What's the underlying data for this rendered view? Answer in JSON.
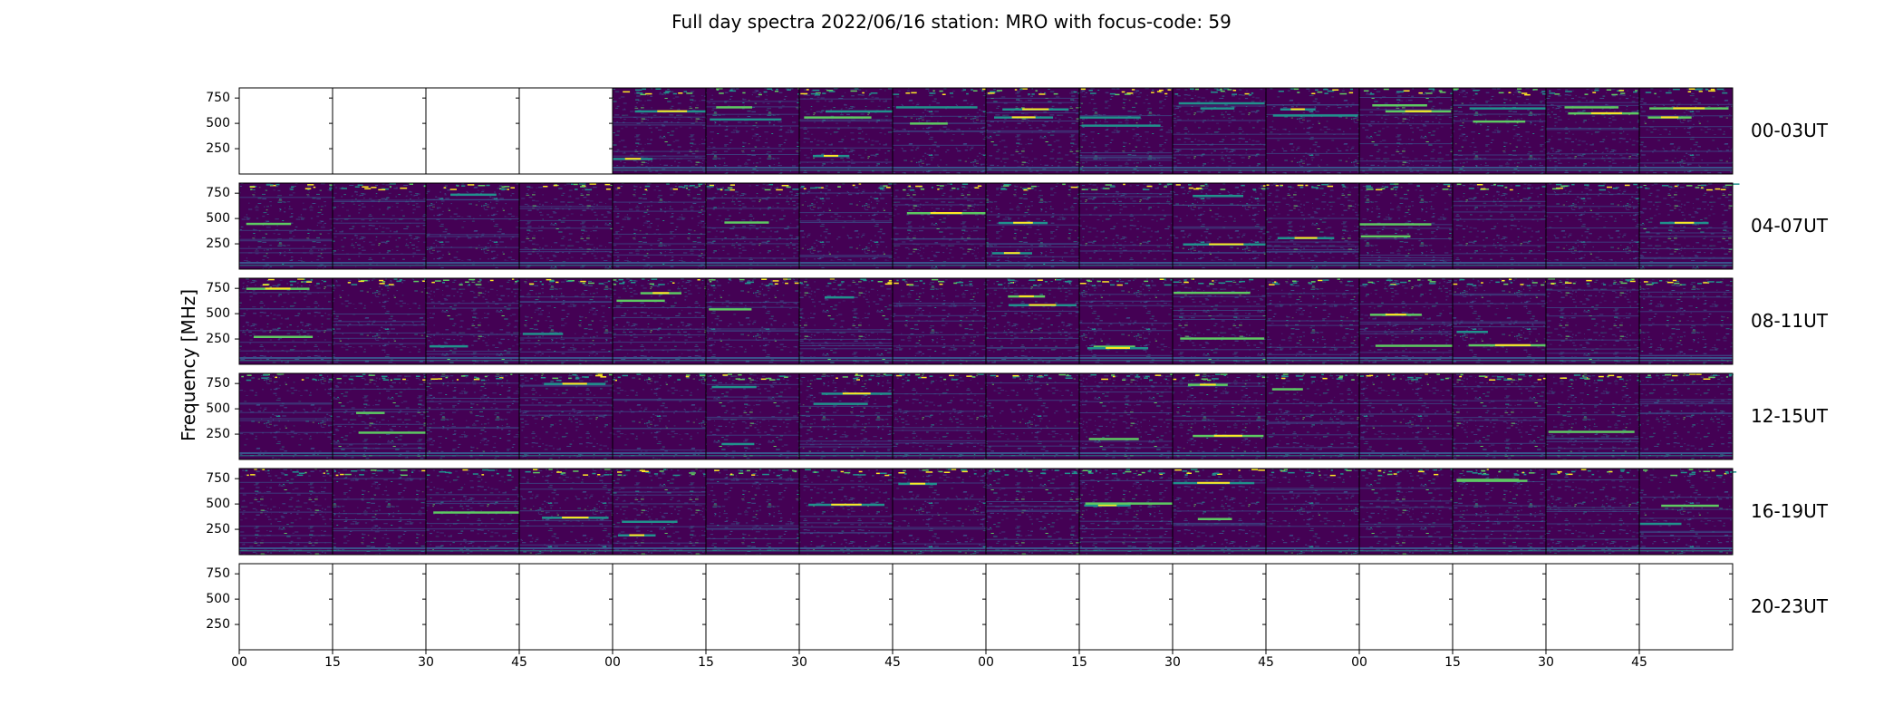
{
  "chart_data": {
    "type": "heatmap",
    "title": "Full day spectra 2022/06/16 station: MRO with focus-code: 59",
    "ylabel": "Frequency [MHz]",
    "xlabel": "",
    "yticks": [
      "750",
      "500",
      "250"
    ],
    "ytick_values": [
      750,
      500,
      250
    ],
    "ylim": [
      0,
      850
    ],
    "xticks": [
      "00",
      "15",
      "30",
      "45",
      "00",
      "15",
      "30",
      "45",
      "00",
      "15",
      "30",
      "45",
      "00",
      "15",
      "30",
      "45"
    ],
    "xtick_minutes": [
      0,
      15,
      30,
      45,
      60,
      75,
      90,
      105,
      120,
      135,
      150,
      165,
      180,
      195,
      210,
      225
    ],
    "xlim_minutes": [
      0,
      240
    ],
    "panel_minutes": 15,
    "colormap": [
      "#440154",
      "#3b528b",
      "#21918c",
      "#5ec962",
      "#fde725"
    ],
    "rows": [
      {
        "label": "00-03UT",
        "has_data": [
          false,
          false,
          false,
          false,
          true,
          true,
          true,
          true,
          true,
          true,
          true,
          true,
          true,
          true,
          true,
          true
        ]
      },
      {
        "label": "04-07UT",
        "has_data": [
          true,
          true,
          true,
          true,
          true,
          true,
          true,
          true,
          true,
          true,
          true,
          true,
          true,
          true,
          true,
          true
        ]
      },
      {
        "label": "08-11UT",
        "has_data": [
          true,
          true,
          true,
          true,
          true,
          true,
          true,
          true,
          true,
          true,
          true,
          true,
          true,
          true,
          true,
          true
        ]
      },
      {
        "label": "12-15UT",
        "has_data": [
          true,
          true,
          true,
          true,
          true,
          true,
          true,
          true,
          true,
          true,
          true,
          true,
          true,
          true,
          true,
          true
        ]
      },
      {
        "label": "16-19UT",
        "has_data": [
          true,
          true,
          true,
          true,
          true,
          true,
          true,
          true,
          true,
          true,
          true,
          true,
          true,
          true,
          true,
          true
        ]
      },
      {
        "label": "20-23UT",
        "has_data": [
          false,
          false,
          false,
          false,
          false,
          false,
          false,
          false,
          false,
          false,
          false,
          false,
          false,
          false,
          false,
          false
        ]
      }
    ],
    "bright_bands_mhz": [
      [],
      [],
      [],
      [],
      [
        620,
        150
      ],
      [
        660,
        540
      ],
      [
        620,
        560,
        180
      ],
      [
        660,
        500
      ],
      [
        640,
        560
      ],
      [
        560,
        480
      ],
      [
        700,
        650
      ],
      [
        640,
        580
      ],
      [
        680,
        620
      ],
      [
        650,
        520
      ],
      [
        660,
        600
      ],
      [
        650,
        560
      ]
    ]
  }
}
